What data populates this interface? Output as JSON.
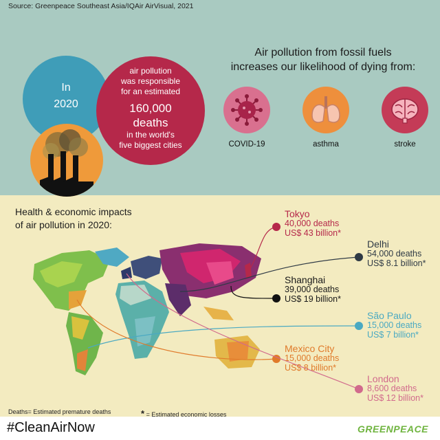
{
  "source": "Source: Greenpeace Southeast Asia/IQAir AirVisual, 2021",
  "intro": {
    "line1": "In",
    "line2": "2020",
    "red_lines": [
      "air pollution",
      "was responsible",
      "for an estimated"
    ],
    "big_number": "160,000",
    "big_unit": "deaths",
    "tail_lines": [
      "in the world's",
      "five biggest cities"
    ]
  },
  "headline": {
    "line1": "Air pollution from fossil fuels",
    "line2": "increases our likelihood of dying from:"
  },
  "causes": [
    {
      "label": "COVID-19",
      "icon": "virus-icon",
      "color": "#d9708f"
    },
    {
      "label": "asthma",
      "icon": "lungs-icon",
      "color": "#ee8f3c"
    },
    {
      "label": "stroke",
      "icon": "brain-icon",
      "color": "#c43b57"
    }
  ],
  "impacts_title": {
    "line1": "Health & economic impacts",
    "line2": "of air pollution in 2020:"
  },
  "cities": [
    {
      "name": "Tokyo",
      "deaths": "40,000 deaths",
      "loss": "US$ 43 billion*",
      "color": "#b5284a"
    },
    {
      "name": "Delhi",
      "deaths": "54,000 deaths",
      "loss": "US$ 8.1 billion*",
      "color": "#2f3a45"
    },
    {
      "name": "Shanghai",
      "deaths": "39,000 deaths",
      "loss": "US$ 19 billion*",
      "color": "#1a1a1a"
    },
    {
      "name": "São Paulo",
      "deaths": "15,000 deaths",
      "loss": "US$ 7 billion*",
      "color": "#4aa9c2"
    },
    {
      "name": "Mexico City",
      "deaths": "15,000 deaths",
      "loss": "US$ 8 billion*",
      "color": "#e07a2a"
    },
    {
      "name": "London",
      "deaths": "8,600 deaths",
      "loss": "US$ 12 billion*",
      "color": "#d16a8c"
    }
  ],
  "legend": {
    "deaths_note": "Deaths= Estimated premature deaths",
    "loss_note": "= Estimated economic losses",
    "asterisk": "*"
  },
  "footer": {
    "hashtag": "#CleanAirNow",
    "brand": "GREENPEACE"
  },
  "colors": {
    "top_bg": "#a9cac1",
    "bottom_bg": "#f3ebc0",
    "blue": "#3f9db8",
    "red": "#b5284a",
    "orange": "#ef9a3a",
    "brand_green": "#6fb43f"
  }
}
